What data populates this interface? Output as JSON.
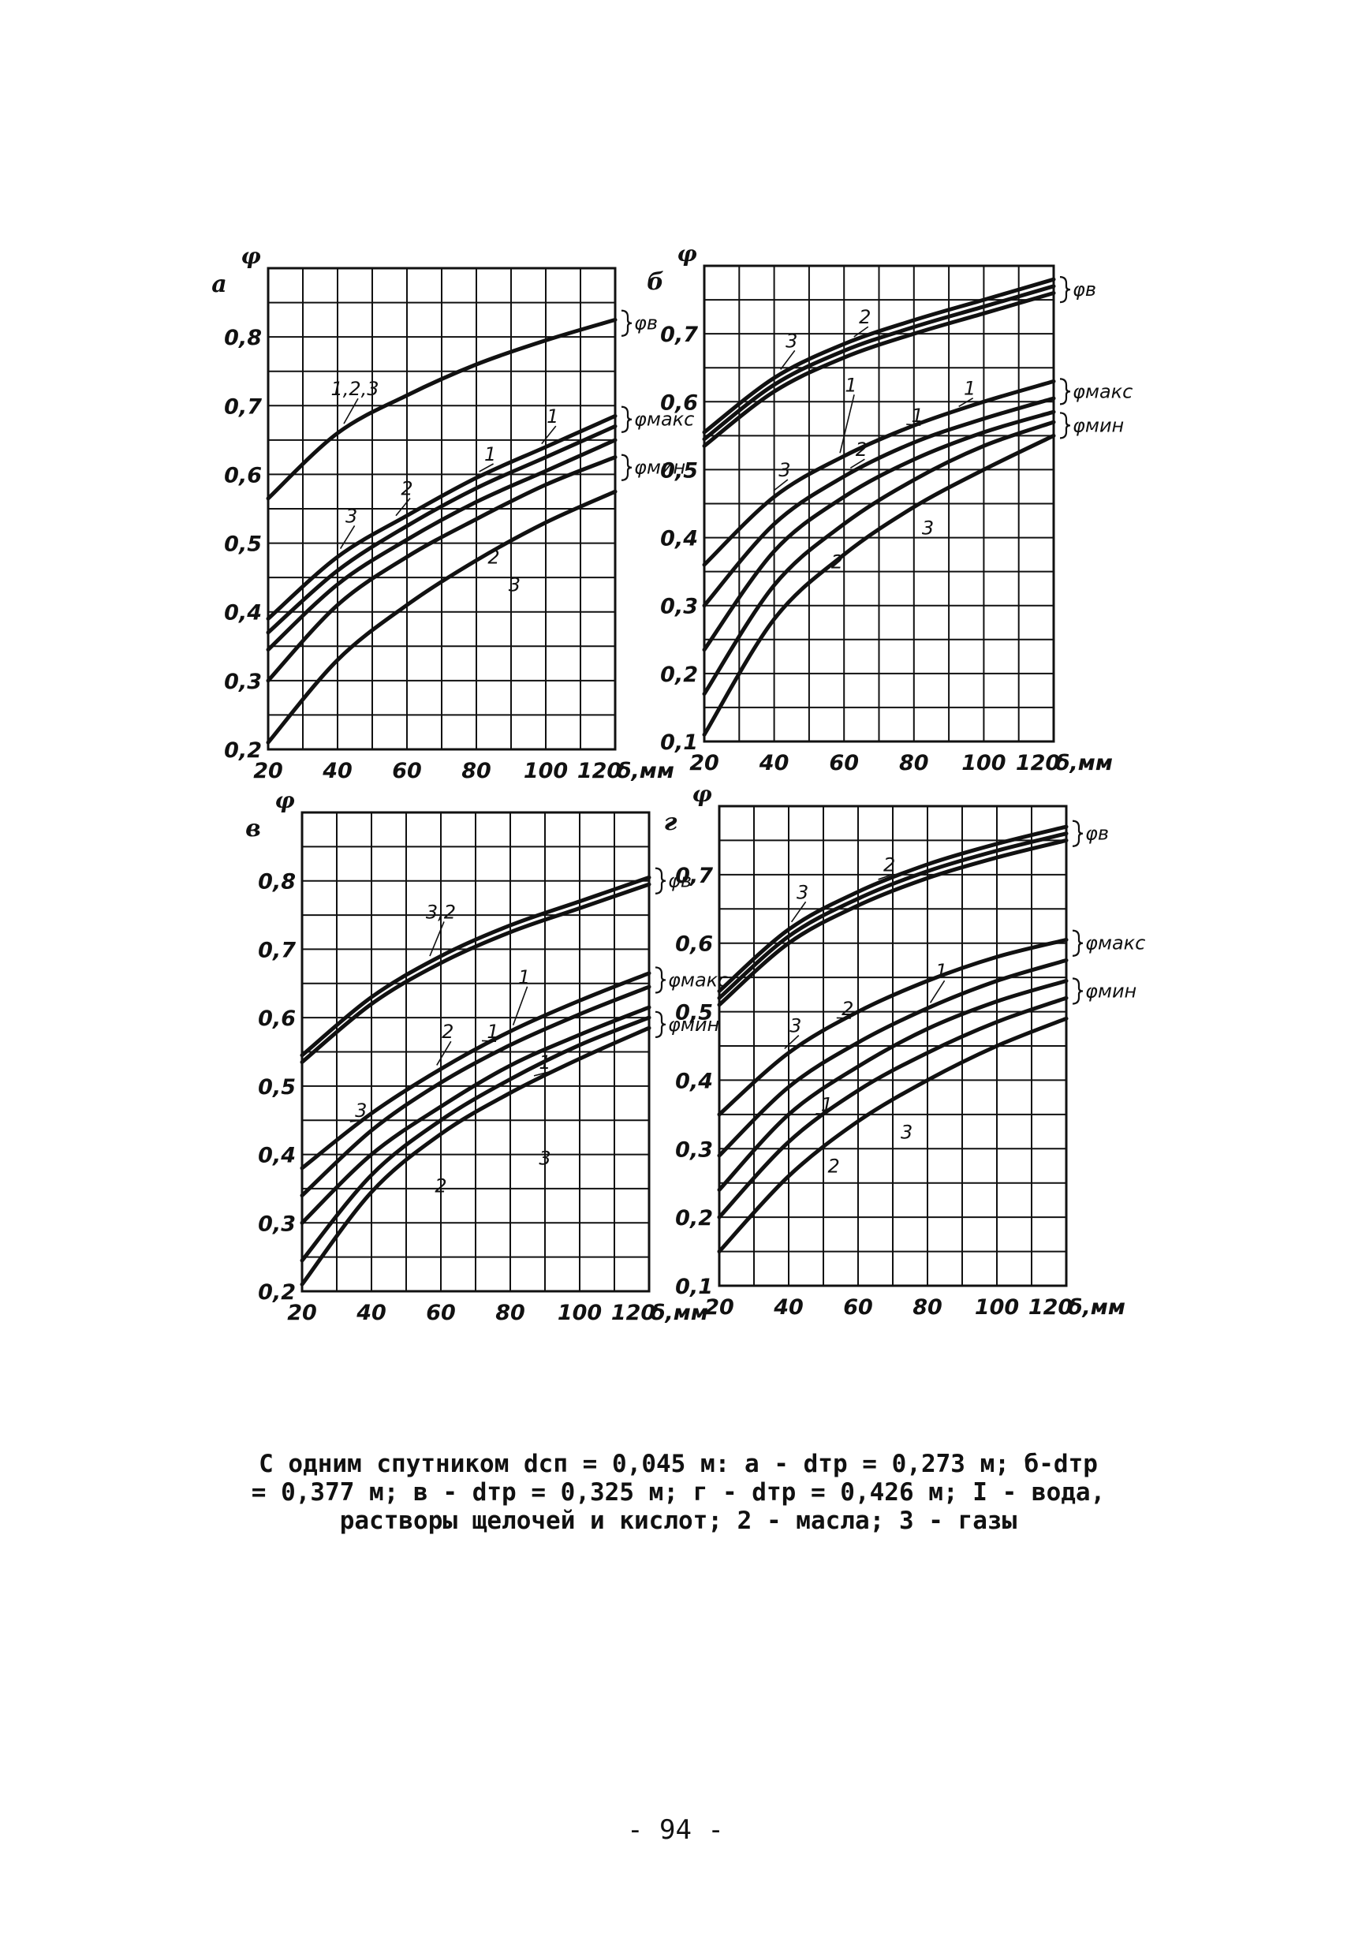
{
  "chart_data": [
    {
      "type": "line",
      "panel_letter": "а",
      "y_symbol": "φ",
      "x_unit": "δ,мм",
      "xlim": [
        20,
        120
      ],
      "ylim": [
        0.2,
        0.9
      ],
      "x_ticks": [
        20,
        40,
        60,
        80,
        100,
        120
      ],
      "x_tick_labels": [
        "20",
        "40",
        "60",
        "80",
        "100",
        "120"
      ],
      "y_ticks": [
        0.2,
        0.3,
        0.4,
        0.5,
        0.6,
        0.7,
        0.8
      ],
      "y_tick_labels": [
        "0,2",
        "0,3",
        "0,4",
        "0,5",
        "0,6",
        "0,7",
        "0,8"
      ],
      "grid": true,
      "groups": [
        {
          "name": "φв",
          "series": [
            {
              "name": "1,2,3",
              "x": [
                20,
                40,
                60,
                80,
                100,
                120
              ],
              "y": [
                0.565,
                0.66,
                0.715,
                0.76,
                0.795,
                0.825
              ]
            }
          ]
        },
        {
          "name": "φмакс",
          "series": [
            {
              "name": "3",
              "x": [
                20,
                40,
                60,
                80,
                100,
                120
              ],
              "y": [
                0.39,
                0.48,
                0.54,
                0.595,
                0.64,
                0.685
              ]
            },
            {
              "name": "1",
              "x": [
                20,
                40,
                60,
                80,
                100,
                120
              ],
              "y": [
                0.37,
                0.46,
                0.525,
                0.58,
                0.625,
                0.67
              ]
            }
          ]
        },
        {
          "name": "φмин",
          "series": [
            {
              "name": "2",
              "x": [
                20,
                40,
                60,
                80,
                100,
                120
              ],
              "y": [
                0.345,
                0.44,
                0.505,
                0.56,
                0.605,
                0.65
              ]
            },
            {
              "name": "2",
              "x": [
                20,
                40,
                60,
                80,
                100,
                120
              ],
              "y": [
                0.3,
                0.41,
                0.48,
                0.535,
                0.585,
                0.625
              ]
            },
            {
              "name": "3",
              "x": [
                20,
                40,
                60,
                80,
                100,
                120
              ],
              "y": [
                0.21,
                0.33,
                0.41,
                0.475,
                0.53,
                0.575
              ]
            }
          ]
        }
      ],
      "labels": [
        {
          "text": "1,2,3",
          "x": 45,
          "y": 0.715
        },
        {
          "text": "3",
          "x": 44,
          "y": 0.53
        },
        {
          "text": "2",
          "x": 60,
          "y": 0.57
        },
        {
          "text": "1",
          "x": 84,
          "y": 0.62
        },
        {
          "text": "1",
          "x": 102,
          "y": 0.675
        },
        {
          "text": "2",
          "x": 85,
          "y": 0.47
        },
        {
          "text": "3",
          "x": 91,
          "y": 0.43
        }
      ],
      "brace_labels": [
        {
          "text": "φв",
          "y": 0.82
        },
        {
          "text": "φмакс",
          "y": 0.68
        },
        {
          "text": "φмин",
          "y": 0.61
        }
      ]
    },
    {
      "type": "line",
      "panel_letter": "б",
      "y_symbol": "φ",
      "x_unit": "δ,мм",
      "xlim": [
        20,
        120
      ],
      "ylim": [
        0.1,
        0.8
      ],
      "x_ticks": [
        20,
        40,
        60,
        80,
        100,
        120
      ],
      "x_tick_labels": [
        "20",
        "40",
        "60",
        "80",
        "100",
        "120"
      ],
      "y_ticks": [
        0.1,
        0.2,
        0.3,
        0.4,
        0.5,
        0.6,
        0.7
      ],
      "y_tick_labels": [
        "0,1",
        "0,2",
        "0,3",
        "0,4",
        "0,5",
        "0,6",
        "0,7"
      ],
      "grid": true,
      "groups": [
        {
          "name": "φв",
          "series": [
            {
              "name": "3",
              "x": [
                20,
                40,
                60,
                80,
                100,
                120
              ],
              "y": [
                0.555,
                0.635,
                0.685,
                0.72,
                0.75,
                0.78
              ]
            },
            {
              "name": "2",
              "x": [
                20,
                40,
                60,
                80,
                100,
                120
              ],
              "y": [
                0.545,
                0.625,
                0.675,
                0.71,
                0.74,
                0.77
              ]
            },
            {
              "name": "1",
              "x": [
                20,
                40,
                60,
                80,
                100,
                120
              ],
              "y": [
                0.535,
                0.615,
                0.665,
                0.7,
                0.73,
                0.76
              ]
            }
          ]
        },
        {
          "name": "φмакс",
          "series": [
            {
              "name": "3",
              "x": [
                20,
                40,
                60,
                80,
                100,
                120
              ],
              "y": [
                0.36,
                0.46,
                0.52,
                0.565,
                0.6,
                0.63
              ]
            },
            {
              "name": "1",
              "x": [
                20,
                40,
                60,
                80,
                100,
                120
              ],
              "y": [
                0.3,
                0.42,
                0.49,
                0.54,
                0.575,
                0.605
              ]
            }
          ]
        },
        {
          "name": "φмин",
          "series": [
            {
              "name": "2",
              "x": [
                20,
                40,
                60,
                80,
                100,
                120
              ],
              "y": [
                0.235,
                0.38,
                0.46,
                0.515,
                0.555,
                0.585
              ]
            },
            {
              "name": "2",
              "x": [
                20,
                40,
                60,
                80,
                100,
                120
              ],
              "y": [
                0.17,
                0.33,
                0.42,
                0.485,
                0.535,
                0.57
              ]
            },
            {
              "name": "3",
              "x": [
                20,
                40,
                60,
                80,
                100,
                120
              ],
              "y": [
                0.11,
                0.28,
                0.375,
                0.445,
                0.5,
                0.55
              ]
            }
          ]
        }
      ],
      "labels": [
        {
          "text": "3",
          "x": 45,
          "y": 0.68
        },
        {
          "text": "2",
          "x": 66,
          "y": 0.715
        },
        {
          "text": "1",
          "x": 62,
          "y": 0.615
        },
        {
          "text": "1",
          "x": 96,
          "y": 0.61
        },
        {
          "text": "1",
          "x": 81,
          "y": 0.57
        },
        {
          "text": "2",
          "x": 65,
          "y": 0.52
        },
        {
          "text": "3",
          "x": 43,
          "y": 0.49
        },
        {
          "text": "3",
          "x": 84,
          "y": 0.405
        },
        {
          "text": "2",
          "x": 58,
          "y": 0.355
        }
      ],
      "brace_labels": [
        {
          "text": "φв",
          "y": 0.765
        },
        {
          "text": "φмакс",
          "y": 0.615
        },
        {
          "text": "φмин",
          "y": 0.565
        }
      ]
    },
    {
      "type": "line",
      "panel_letter": "в",
      "y_symbol": "φ",
      "x_unit": "δ,мм",
      "xlim": [
        20,
        120
      ],
      "ylim": [
        0.2,
        0.9
      ],
      "x_ticks": [
        20,
        40,
        60,
        80,
        100,
        120
      ],
      "x_tick_labels": [
        "20",
        "40",
        "60",
        "80",
        "100",
        "120"
      ],
      "y_ticks": [
        0.2,
        0.3,
        0.4,
        0.5,
        0.6,
        0.7,
        0.8
      ],
      "y_tick_labels": [
        "0,2",
        "0,3",
        "0,4",
        "0,5",
        "0,6",
        "0,7",
        "0,8"
      ],
      "grid": true,
      "groups": [
        {
          "name": "φв",
          "series": [
            {
              "name": "3,2",
              "x": [
                20,
                40,
                60,
                80,
                100,
                120
              ],
              "y": [
                0.545,
                0.63,
                0.69,
                0.735,
                0.77,
                0.805
              ]
            },
            {
              "name": "1",
              "x": [
                20,
                40,
                60,
                80,
                100,
                120
              ],
              "y": [
                0.535,
                0.62,
                0.68,
                0.725,
                0.76,
                0.795
              ]
            }
          ]
        },
        {
          "name": "φмакс",
          "series": [
            {
              "name": "3",
              "x": [
                20,
                40,
                60,
                80,
                100,
                120
              ],
              "y": [
                0.38,
                0.46,
                0.525,
                0.58,
                0.625,
                0.665
              ]
            },
            {
              "name": "2",
              "x": [
                20,
                40,
                60,
                80,
                100,
                120
              ],
              "y": [
                0.34,
                0.435,
                0.505,
                0.56,
                0.605,
                0.645
              ]
            }
          ]
        },
        {
          "name": "φмин",
          "series": [
            {
              "name": "1",
              "x": [
                20,
                40,
                60,
                80,
                100,
                120
              ],
              "y": [
                0.3,
                0.4,
                0.47,
                0.53,
                0.575,
                0.615
              ]
            },
            {
              "name": "2",
              "x": [
                20,
                40,
                60,
                80,
                100,
                120
              ],
              "y": [
                0.245,
                0.37,
                0.45,
                0.51,
                0.56,
                0.6
              ]
            },
            {
              "name": "3",
              "x": [
                20,
                40,
                60,
                80,
                100,
                120
              ],
              "y": [
                0.21,
                0.345,
                0.43,
                0.49,
                0.54,
                0.585
              ]
            }
          ]
        }
      ],
      "labels": [
        {
          "text": "3,2",
          "x": 60,
          "y": 0.745
        },
        {
          "text": "1",
          "x": 84,
          "y": 0.65
        },
        {
          "text": "2",
          "x": 62,
          "y": 0.57
        },
        {
          "text": "1",
          "x": 75,
          "y": 0.57
        },
        {
          "text": "3",
          "x": 37,
          "y": 0.455
        },
        {
          "text": "1",
          "x": 90,
          "y": 0.525
        },
        {
          "text": "2",
          "x": 60,
          "y": 0.345
        },
        {
          "text": "3",
          "x": 90,
          "y": 0.385
        }
      ],
      "brace_labels": [
        {
          "text": "φв",
          "y": 0.8
        },
        {
          "text": "φмакс",
          "y": 0.655
        },
        {
          "text": "φмин",
          "y": 0.59
        }
      ]
    },
    {
      "type": "line",
      "panel_letter": "г",
      "y_symbol": "φ",
      "x_unit": "δ,мм",
      "xlim": [
        20,
        120
      ],
      "ylim": [
        0.1,
        0.8
      ],
      "x_ticks": [
        20,
        40,
        60,
        80,
        100,
        120
      ],
      "x_tick_labels": [
        "20",
        "40",
        "60",
        "80",
        "100",
        "120"
      ],
      "y_ticks": [
        0.1,
        0.2,
        0.3,
        0.4,
        0.5,
        0.6,
        0.7
      ],
      "y_tick_labels": [
        "0,1",
        "0,2",
        "0,3",
        "0,4",
        "0,5",
        "0,6",
        "0,7"
      ],
      "grid": true,
      "groups": [
        {
          "name": "φв",
          "series": [
            {
              "name": "3",
              "x": [
                20,
                40,
                60,
                80,
                100,
                120
              ],
              "y": [
                0.53,
                0.62,
                0.675,
                0.715,
                0.745,
                0.77
              ]
            },
            {
              "name": "2",
              "x": [
                20,
                40,
                60,
                80,
                100,
                120
              ],
              "y": [
                0.52,
                0.61,
                0.665,
                0.705,
                0.735,
                0.76
              ]
            },
            {
              "name": "1",
              "x": [
                20,
                40,
                60,
                80,
                100,
                120
              ],
              "y": [
                0.51,
                0.6,
                0.655,
                0.695,
                0.725,
                0.75
              ]
            }
          ]
        },
        {
          "name": "φмакс",
          "series": [
            {
              "name": "3",
              "x": [
                20,
                40,
                60,
                80,
                100,
                120
              ],
              "y": [
                0.35,
                0.44,
                0.5,
                0.545,
                0.58,
                0.605
              ]
            },
            {
              "name": "1",
              "x": [
                20,
                40,
                60,
                80,
                100,
                120
              ],
              "y": [
                0.29,
                0.39,
                0.455,
                0.505,
                0.545,
                0.575
              ]
            }
          ]
        },
        {
          "name": "φмин",
          "series": [
            {
              "name": "2",
              "x": [
                20,
                40,
                60,
                80,
                100,
                120
              ],
              "y": [
                0.24,
                0.35,
                0.42,
                0.475,
                0.515,
                0.545
              ]
            },
            {
              "name": "2",
              "x": [
                20,
                40,
                60,
                80,
                100,
                120
              ],
              "y": [
                0.2,
                0.31,
                0.385,
                0.44,
                0.485,
                0.52
              ]
            },
            {
              "name": "3",
              "x": [
                20,
                40,
                60,
                80,
                100,
                120
              ],
              "y": [
                0.15,
                0.26,
                0.34,
                0.4,
                0.45,
                0.49
              ]
            }
          ]
        }
      ],
      "labels": [
        {
          "text": "3",
          "x": 44,
          "y": 0.665
        },
        {
          "text": "2",
          "x": 69,
          "y": 0.705
        },
        {
          "text": "1",
          "x": 84,
          "y": 0.55
        },
        {
          "text": "2",
          "x": 57,
          "y": 0.495
        },
        {
          "text": "3",
          "x": 42,
          "y": 0.47
        },
        {
          "text": "1",
          "x": 51,
          "y": 0.355
        },
        {
          "text": "3",
          "x": 74,
          "y": 0.315
        },
        {
          "text": "2",
          "x": 53,
          "y": 0.265
        }
      ],
      "brace_labels": [
        {
          "text": "φв",
          "y": 0.76
        },
        {
          "text": "φмакс",
          "y": 0.6
        },
        {
          "text": "φмин",
          "y": 0.53
        }
      ]
    }
  ],
  "caption": {
    "line1": "С одним спутником dсп = 0,045 м: а - dтр = 0,273 м;   б-dтр",
    "line2": "= 0,377 м; в - dтр = 0,325 м; г - dтр = 0,426 м; I - вода,",
    "line3": "растворы щелочей и кислот; 2 - масла; 3 - газы"
  },
  "page_number": "- 94 -"
}
